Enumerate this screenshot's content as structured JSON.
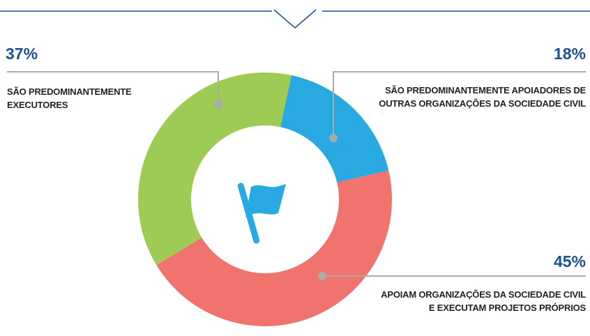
{
  "chart_data": {
    "type": "pie",
    "donut": true,
    "categories": [
      "SÃO PREDOMINANTEMENTE APOIADORES DE OUTRAS ORGANIZAÇÕES DA SOCIEDADE CIVIL",
      "APOIAM ORGANIZAÇÕES DA SOCIEDADE CIVIL E EXECUTAM PROJETOS PRÓPRIOS",
      "SÃO PREDOMINANTEMENTE EXECUTORES"
    ],
    "values": [
      18,
      45,
      37
    ],
    "value_labels": [
      "18%",
      "45%",
      "37%"
    ],
    "colors": [
      "#29a9e1",
      "#f0736e",
      "#9dcb53"
    ]
  }
}
